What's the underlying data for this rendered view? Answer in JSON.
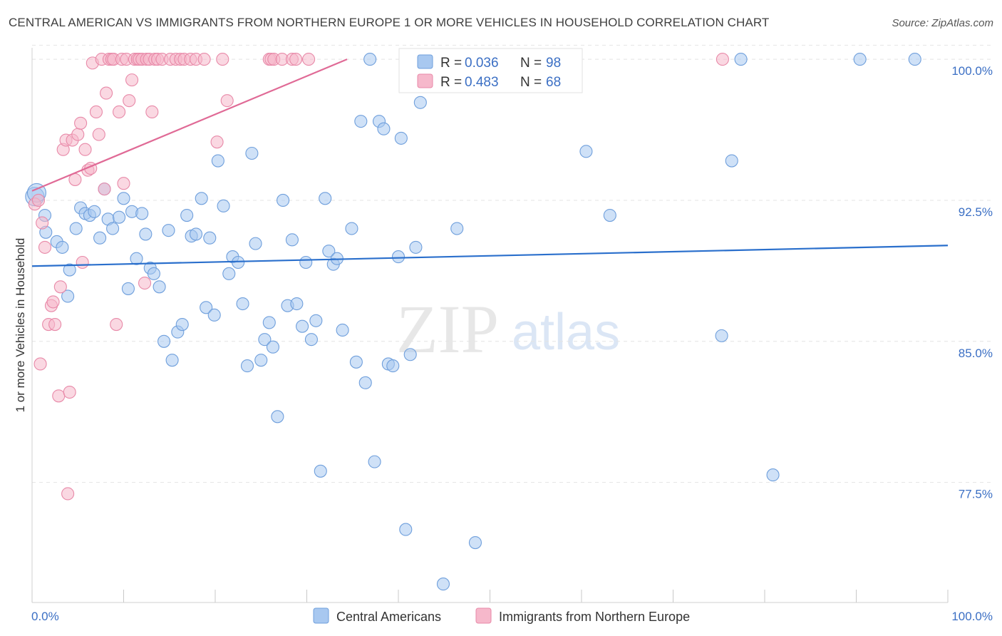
{
  "title": "CENTRAL AMERICAN VS IMMIGRANTS FROM NORTHERN EUROPE 1 OR MORE VEHICLES IN HOUSEHOLD CORRELATION CHART",
  "source": "Source: ZipAtlas.com",
  "watermark": {
    "zip": "ZIP",
    "atlas": "atlas"
  },
  "legend": {
    "r_label": "R =",
    "n_label": "N =",
    "series": [
      {
        "name": "Central Americans",
        "r": "0.036",
        "n": "98",
        "color": "#a8c8f0",
        "stroke": "#6f9fdc"
      },
      {
        "name": "Immigrants from Northern Europe",
        "r": "0.483",
        "n": "68",
        "color": "#f6b8cb",
        "stroke": "#e889a8"
      }
    ]
  },
  "chart_data": {
    "type": "scatter",
    "title": "CENTRAL AMERICAN VS IMMIGRANTS FROM NORTHERN EUROPE 1 OR MORE VEHICLES IN HOUSEHOLD CORRELATION CHART",
    "xlabel": "",
    "ylabel": "1 or more Vehicles in Household",
    "xlim": [
      0,
      100
    ],
    "ylim": [
      71.8,
      100.8
    ],
    "x_tick_labels": [
      "0.0%",
      "100.0%"
    ],
    "y_ticks": [
      100.0,
      92.5,
      85.0,
      77.5
    ],
    "y_tick_labels": [
      "100.0%",
      "92.5%",
      "85.0%",
      "77.5%"
    ],
    "grid": true,
    "series": [
      {
        "name": "Central Americans",
        "color": "#a8c8f0",
        "trend": {
          "x": [
            0,
            100
          ],
          "y": [
            89.0,
            90.1
          ]
        },
        "points": [
          [
            0.3,
            92.7
          ],
          [
            0.5,
            92.9
          ],
          [
            1.4,
            91.7
          ],
          [
            1.5,
            90.8
          ],
          [
            2.7,
            90.3
          ],
          [
            3.3,
            90.0
          ],
          [
            3.9,
            87.4
          ],
          [
            4.1,
            88.8
          ],
          [
            4.8,
            91.0
          ],
          [
            5.3,
            92.1
          ],
          [
            5.8,
            91.8
          ],
          [
            6.3,
            91.7
          ],
          [
            6.8,
            91.9
          ],
          [
            7.4,
            90.5
          ],
          [
            7.9,
            93.1
          ],
          [
            8.3,
            91.5
          ],
          [
            8.8,
            91.0
          ],
          [
            9.5,
            91.6
          ],
          [
            10.0,
            92.6
          ],
          [
            10.5,
            87.8
          ],
          [
            10.9,
            91.9
          ],
          [
            11.4,
            89.4
          ],
          [
            12.0,
            91.8
          ],
          [
            12.4,
            90.7
          ],
          [
            12.9,
            88.9
          ],
          [
            13.3,
            88.6
          ],
          [
            13.9,
            87.9
          ],
          [
            14.4,
            85.0
          ],
          [
            14.9,
            90.9
          ],
          [
            15.3,
            84.0
          ],
          [
            15.9,
            85.5
          ],
          [
            16.4,
            85.9
          ],
          [
            16.9,
            91.7
          ],
          [
            17.4,
            90.6
          ],
          [
            17.9,
            90.7
          ],
          [
            18.5,
            92.6
          ],
          [
            19.0,
            86.8
          ],
          [
            19.4,
            90.5
          ],
          [
            19.9,
            86.4
          ],
          [
            20.3,
            94.6
          ],
          [
            20.9,
            92.2
          ],
          [
            21.5,
            88.6
          ],
          [
            21.9,
            89.5
          ],
          [
            22.5,
            89.2
          ],
          [
            23.0,
            87.0
          ],
          [
            23.5,
            83.7
          ],
          [
            24.0,
            95.0
          ],
          [
            24.4,
            90.2
          ],
          [
            25.0,
            84.0
          ],
          [
            25.4,
            85.1
          ],
          [
            25.9,
            86.0
          ],
          [
            26.3,
            84.7
          ],
          [
            26.8,
            81.0
          ],
          [
            27.4,
            92.5
          ],
          [
            27.9,
            86.9
          ],
          [
            28.4,
            90.4
          ],
          [
            28.9,
            87.0
          ],
          [
            29.5,
            85.8
          ],
          [
            29.9,
            89.2
          ],
          [
            30.5,
            85.1
          ],
          [
            31.0,
            86.1
          ],
          [
            31.5,
            78.1
          ],
          [
            32.0,
            92.6
          ],
          [
            32.4,
            89.8
          ],
          [
            32.9,
            89.1
          ],
          [
            33.3,
            89.4
          ],
          [
            33.9,
            85.6
          ],
          [
            34.9,
            91.0
          ],
          [
            35.4,
            83.9
          ],
          [
            35.9,
            96.7
          ],
          [
            36.4,
            82.8
          ],
          [
            36.9,
            100.0
          ],
          [
            37.4,
            78.6
          ],
          [
            37.9,
            96.7
          ],
          [
            38.4,
            96.3
          ],
          [
            38.9,
            83.8
          ],
          [
            39.4,
            83.7
          ],
          [
            40.0,
            89.5
          ],
          [
            40.3,
            95.8
          ],
          [
            40.8,
            75.0
          ],
          [
            41.3,
            84.3
          ],
          [
            41.9,
            90.0
          ],
          [
            42.4,
            97.7
          ],
          [
            43.4,
            100.0
          ],
          [
            44.9,
            72.1
          ],
          [
            46.4,
            91.0
          ],
          [
            47.4,
            100.0
          ],
          [
            48.4,
            74.3
          ],
          [
            54.4,
            100.0
          ],
          [
            58.9,
            100.0
          ],
          [
            60.5,
            95.1
          ],
          [
            63.1,
            91.7
          ],
          [
            75.3,
            85.3
          ],
          [
            76.4,
            94.6
          ],
          [
            77.4,
            100.0
          ],
          [
            80.9,
            77.9
          ],
          [
            90.4,
            100.0
          ],
          [
            96.4,
            100.0
          ]
        ]
      },
      {
        "name": "Immigrants from Northern Europe",
        "color": "#f6b8cb",
        "trend": {
          "x": [
            0,
            34.4
          ],
          "y": [
            93.0,
            100.0
          ]
        },
        "points": [
          [
            0.3,
            92.3
          ],
          [
            0.7,
            92.5
          ],
          [
            0.9,
            83.8
          ],
          [
            1.1,
            91.3
          ],
          [
            1.4,
            90.0
          ],
          [
            1.8,
            85.9
          ],
          [
            2.1,
            86.9
          ],
          [
            2.3,
            87.1
          ],
          [
            2.5,
            85.9
          ],
          [
            2.9,
            82.1
          ],
          [
            3.1,
            87.9
          ],
          [
            3.4,
            95.2
          ],
          [
            3.7,
            95.7
          ],
          [
            3.9,
            76.9
          ],
          [
            4.1,
            82.3
          ],
          [
            4.4,
            95.7
          ],
          [
            4.7,
            93.6
          ],
          [
            5.0,
            96.0
          ],
          [
            5.3,
            96.6
          ],
          [
            5.5,
            89.2
          ],
          [
            5.8,
            95.2
          ],
          [
            6.1,
            94.1
          ],
          [
            6.4,
            94.2
          ],
          [
            6.6,
            99.8
          ],
          [
            7.0,
            97.2
          ],
          [
            7.3,
            96.0
          ],
          [
            7.6,
            100.0
          ],
          [
            7.9,
            93.1
          ],
          [
            8.1,
            98.2
          ],
          [
            8.4,
            100.0
          ],
          [
            8.7,
            100.0
          ],
          [
            8.9,
            100.0
          ],
          [
            9.2,
            85.9
          ],
          [
            9.5,
            97.2
          ],
          [
            9.8,
            100.0
          ],
          [
            10.0,
            93.4
          ],
          [
            10.3,
            100.0
          ],
          [
            10.6,
            97.8
          ],
          [
            10.9,
            98.9
          ],
          [
            11.2,
            100.0
          ],
          [
            11.5,
            100.0
          ],
          [
            11.7,
            100.0
          ],
          [
            12.0,
            100.0
          ],
          [
            12.3,
            88.1
          ],
          [
            12.5,
            100.0
          ],
          [
            12.8,
            100.0
          ],
          [
            13.1,
            97.2
          ],
          [
            13.4,
            100.0
          ],
          [
            13.7,
            100.0
          ],
          [
            14.2,
            100.0
          ],
          [
            15.1,
            100.0
          ],
          [
            15.7,
            100.0
          ],
          [
            16.2,
            100.0
          ],
          [
            16.6,
            100.0
          ],
          [
            17.3,
            100.0
          ],
          [
            17.9,
            100.0
          ],
          [
            18.8,
            100.0
          ],
          [
            20.2,
            95.6
          ],
          [
            20.8,
            100.0
          ],
          [
            21.3,
            97.8
          ],
          [
            25.9,
            100.0
          ],
          [
            26.1,
            100.0
          ],
          [
            26.4,
            100.0
          ],
          [
            27.3,
            100.0
          ],
          [
            28.4,
            100.0
          ],
          [
            28.8,
            100.0
          ],
          [
            30.2,
            100.0
          ],
          [
            75.4,
            100.0
          ]
        ]
      }
    ]
  },
  "bottom_legend": [
    {
      "label": "Central Americans"
    },
    {
      "label": "Immigrants from Northern Europe"
    }
  ]
}
